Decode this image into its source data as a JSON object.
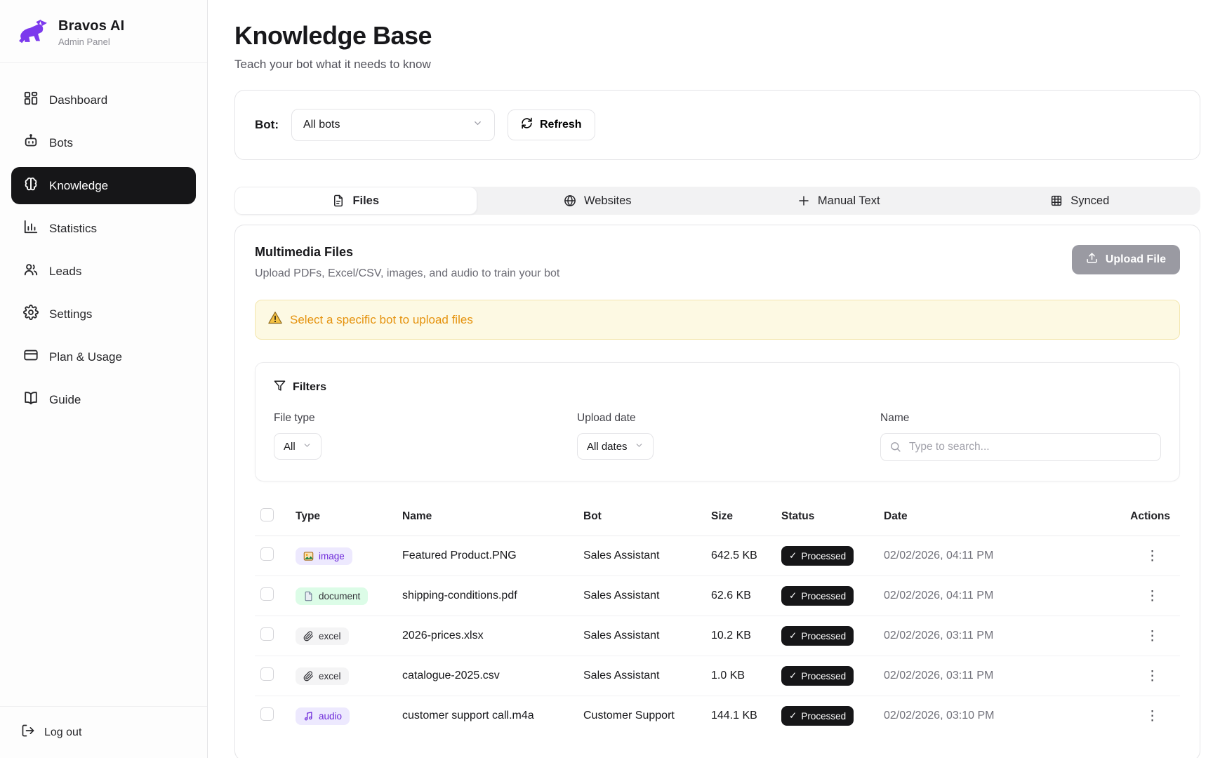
{
  "sidebar": {
    "brand": {
      "name": "Bravos AI",
      "subtitle": "Admin Panel",
      "logo_color": "#7c3aed"
    },
    "items": [
      {
        "label": "Dashboard",
        "icon": "dashboard-icon",
        "active": false
      },
      {
        "label": "Bots",
        "icon": "bot-icon",
        "active": false
      },
      {
        "label": "Knowledge",
        "icon": "brain-icon",
        "active": true
      },
      {
        "label": "Statistics",
        "icon": "bar-chart-icon",
        "active": false
      },
      {
        "label": "Leads",
        "icon": "users-icon",
        "active": false
      },
      {
        "label": "Settings",
        "icon": "gear-icon",
        "active": false
      },
      {
        "label": "Plan & Usage",
        "icon": "credit-card-icon",
        "active": false
      },
      {
        "label": "Guide",
        "icon": "book-icon",
        "active": false
      }
    ],
    "logout_label": "Log out"
  },
  "header": {
    "title": "Knowledge Base",
    "subtitle": "Teach your bot what it needs to know"
  },
  "bot_bar": {
    "label": "Bot:",
    "selected": "All bots",
    "refresh_label": "Refresh"
  },
  "tabs": [
    {
      "label": "Files",
      "icon": "file-icon",
      "active": true
    },
    {
      "label": "Websites",
      "icon": "globe-icon",
      "active": false
    },
    {
      "label": "Manual Text",
      "icon": "plus-icon",
      "active": false
    },
    {
      "label": "Synced",
      "icon": "grid-icon",
      "active": false
    }
  ],
  "files_panel": {
    "title": "Multimedia Files",
    "subtitle": "Upload PDFs, Excel/CSV, images, and audio to train your bot",
    "upload_label": "Upload File",
    "warning_text": "Select a specific bot to upload files",
    "filters": {
      "title": "Filters",
      "file_type_label": "File type",
      "file_type_value": "All",
      "upload_date_label": "Upload date",
      "upload_date_value": "All dates",
      "name_label": "Name",
      "search_placeholder": "Type to search..."
    },
    "table": {
      "headers": [
        "Type",
        "Name",
        "Bot",
        "Size",
        "Status",
        "Date",
        "Actions"
      ],
      "status_check": "✓",
      "rows": [
        {
          "type": "image",
          "name": "Featured Product.PNG",
          "bot": "Sales Assistant",
          "size": "642.5 KB",
          "status": "Processed",
          "date": "02/02/2026, 04:11 PM"
        },
        {
          "type": "document",
          "name": "shipping-conditions.pdf",
          "bot": "Sales Assistant",
          "size": "62.6 KB",
          "status": "Processed",
          "date": "02/02/2026, 04:11 PM"
        },
        {
          "type": "excel",
          "name": "2026-prices.xlsx",
          "bot": "Sales Assistant",
          "size": "10.2 KB",
          "status": "Processed",
          "date": "02/02/2026, 03:11 PM"
        },
        {
          "type": "excel",
          "name": "catalogue-2025.csv",
          "bot": "Sales Assistant",
          "size": "1.0 KB",
          "status": "Processed",
          "date": "02/02/2026, 03:11 PM"
        },
        {
          "type": "audio",
          "name": "customer support call.m4a",
          "bot": "Customer Support",
          "size": "144.1 KB",
          "status": "Processed",
          "date": "02/02/2026, 03:10 PM"
        }
      ],
      "badge_styles": {
        "image": {
          "bg": "#ede9fe",
          "color": "#6d28d9",
          "icon": "image-icon"
        },
        "document": {
          "bg": "#dcfce7",
          "color": "#34343a",
          "icon": "document-icon"
        },
        "excel": {
          "bg": "#f4f4f5",
          "color": "#34343a",
          "icon": "paperclip-icon"
        },
        "audio": {
          "bg": "#ede9fe",
          "color": "#6d28d9",
          "icon": "music-note-icon"
        }
      }
    }
  },
  "colors": {
    "brand_purple": "#7c3aed",
    "active_nav_bg": "#161618",
    "warning_text": "#e5930f",
    "warning_bg": "#fdf9e3",
    "status_pill_bg": "#161618"
  }
}
